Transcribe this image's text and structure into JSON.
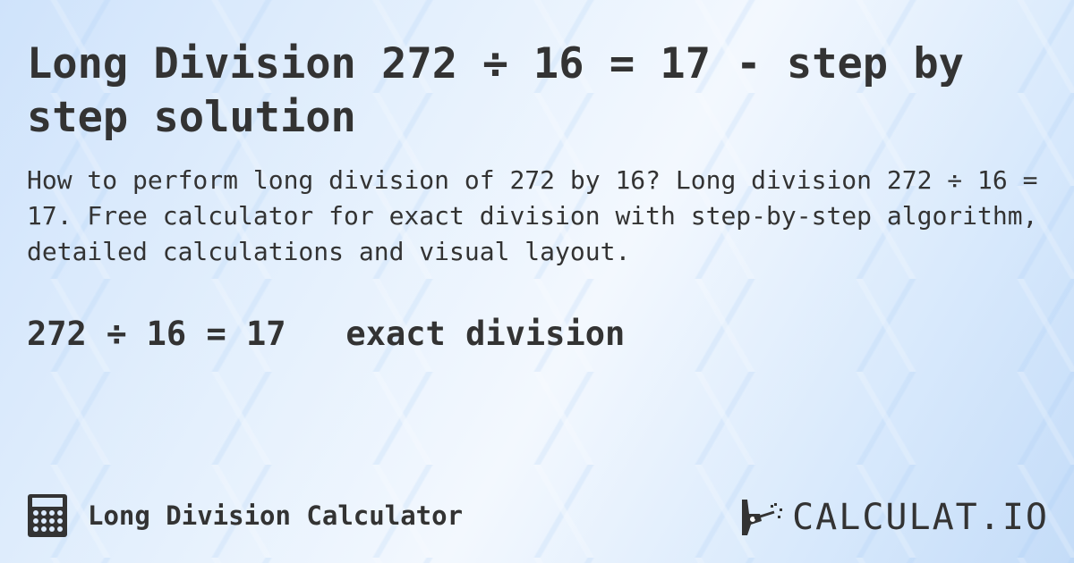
{
  "title": "Long Division 272 ÷ 16 = 17 - step by step solution",
  "description": "How to perform long division of 272 by 16? Long division 272 ÷ 16 = 17. Free calculator for exact division with step-by-step algorithm, detailed calculations and visual layout.",
  "result": {
    "equation": "272 ÷ 16 = 17",
    "note": "exact division"
  },
  "footer": {
    "calculator_name": "Long Division Calculator",
    "icon": "calculator-icon"
  },
  "logo": {
    "text": "CALCULAT.IO",
    "icon": "magic-hand-icon"
  },
  "colors": {
    "text": "#333333",
    "background": "#dbeafc"
  }
}
